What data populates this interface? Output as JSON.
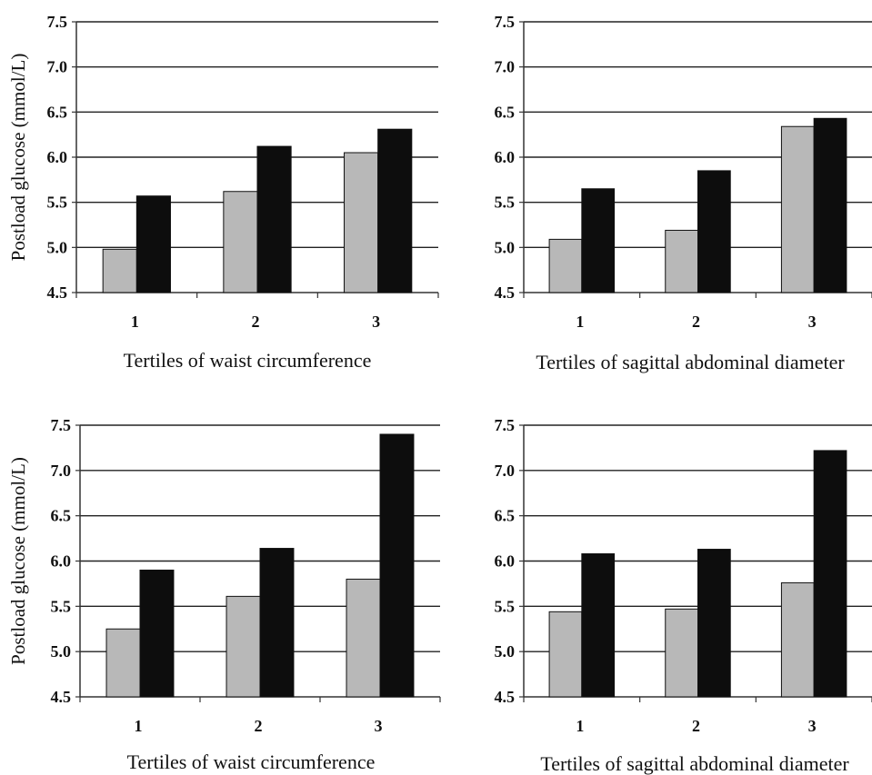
{
  "figure": {
    "ylabel": "Postload glucose (mmol/L)"
  },
  "colors": {
    "series_light": "#b8b8b8",
    "series_dark": "#0d0d0d",
    "gridline": "#222222",
    "axis": "#333333"
  },
  "chart_data": [
    {
      "type": "bar",
      "title": "",
      "xlabel": "Tertiles of waist circumference",
      "ylabel": "Postload glucose (mmol/L)",
      "categories": [
        "1",
        "2",
        "3"
      ],
      "ylim": [
        4.5,
        7.5
      ],
      "yticks": [
        "4.5",
        "5.0",
        "5.5",
        "6.0",
        "6.5",
        "7.0",
        "7.5"
      ],
      "grid": true,
      "series": [
        {
          "values": [
            4.98,
            5.62,
            6.05
          ]
        },
        {
          "values": [
            5.57,
            6.12,
            6.31
          ]
        }
      ]
    },
    {
      "type": "bar",
      "title": "",
      "xlabel": "Tertiles of sagittal abdominal diameter",
      "ylabel": "",
      "categories": [
        "1",
        "2",
        "3"
      ],
      "ylim": [
        4.5,
        7.5
      ],
      "yticks": [
        "4.5",
        "5.0",
        "5.5",
        "6.0",
        "6.5",
        "7.0",
        "7.5"
      ],
      "grid": true,
      "series": [
        {
          "values": [
            5.09,
            5.19,
            6.34
          ]
        },
        {
          "values": [
            5.65,
            5.85,
            6.43
          ]
        }
      ]
    },
    {
      "type": "bar",
      "title": "",
      "xlabel": "Tertiles of waist circumference",
      "ylabel": "Postload glucose (mmol/L)",
      "categories": [
        "1",
        "2",
        "3"
      ],
      "ylim": [
        4.5,
        7.5
      ],
      "yticks": [
        "4.5",
        "5.0",
        "5.5",
        "6.0",
        "6.5",
        "7.0",
        "7.5"
      ],
      "grid": true,
      "series": [
        {
          "values": [
            5.25,
            5.61,
            5.8
          ]
        },
        {
          "values": [
            5.9,
            6.14,
            7.4
          ]
        }
      ]
    },
    {
      "type": "bar",
      "title": "",
      "xlabel": "Tertiles of sagittal abdominal diameter",
      "ylabel": "",
      "categories": [
        "1",
        "2",
        "3"
      ],
      "ylim": [
        4.5,
        7.5
      ],
      "yticks": [
        "4.5",
        "5.0",
        "5.5",
        "6.0",
        "6.5",
        "7.0",
        "7.5"
      ],
      "grid": true,
      "series": [
        {
          "values": [
            5.44,
            5.47,
            5.76
          ]
        },
        {
          "values": [
            6.08,
            6.13,
            7.22
          ]
        }
      ]
    }
  ]
}
